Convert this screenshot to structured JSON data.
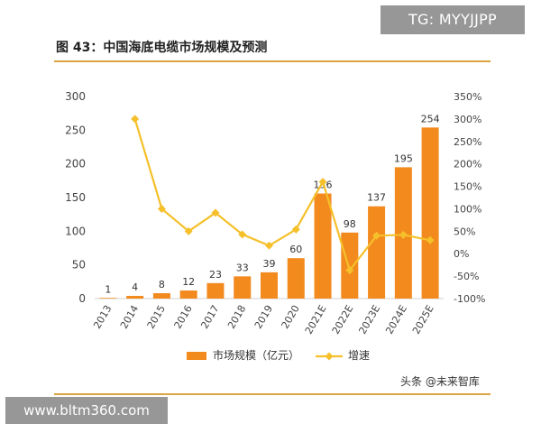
{
  "watermark_top": "TG: MYYJJPP",
  "watermark_bottom": "www.bltm360.com",
  "source_logo": "头条 @未来智库",
  "chart_data": {
    "type": "bar",
    "title": "图 43：中国海底电缆市场规模及预测",
    "categories": [
      "2013",
      "2014",
      "2015",
      "2016",
      "2017",
      "2018",
      "2019",
      "2020",
      "2021E",
      "2022E",
      "2023E",
      "2024E",
      "2025E"
    ],
    "series": [
      {
        "name": "市场规模（亿元）",
        "type": "bar",
        "axis": "left",
        "color": "#f28a1e",
        "values": [
          1,
          4,
          8,
          12,
          23,
          33,
          39,
          60,
          156,
          98,
          137,
          195,
          254
        ]
      },
      {
        "name": "增速",
        "type": "line",
        "axis": "right",
        "color": "#f5c02a",
        "values": [
          null,
          300,
          100,
          50,
          91,
          43,
          18,
          54,
          160,
          -37,
          40,
          42,
          30
        ]
      }
    ],
    "y_left": {
      "min": 0,
      "max": 300,
      "ticks": [
        0,
        50,
        100,
        150,
        200,
        250,
        300
      ]
    },
    "y_right": {
      "min": -100,
      "max": 350,
      "ticks": [
        "-100%",
        "-50%",
        "0%",
        "50%",
        "100%",
        "150%",
        "200%",
        "250%",
        "300%",
        "350%"
      ]
    },
    "grid": false,
    "legend_position": "bottom-center"
  }
}
